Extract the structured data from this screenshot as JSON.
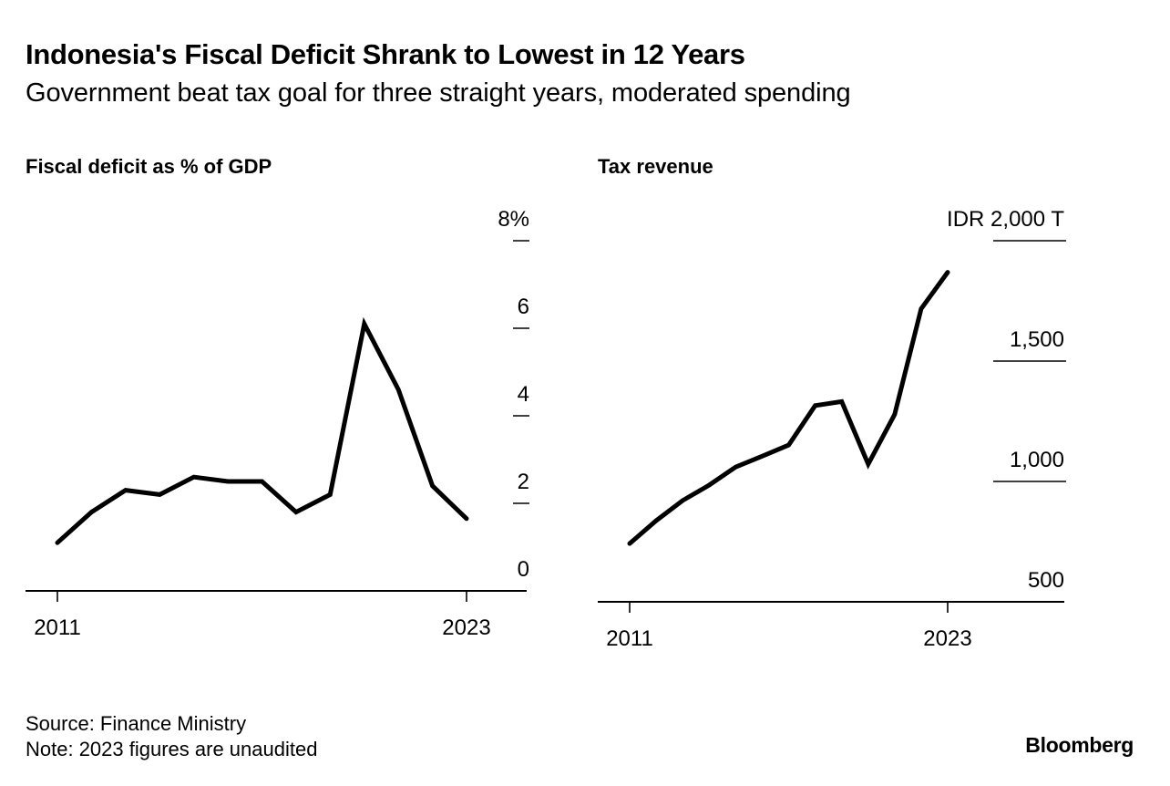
{
  "header": {
    "title": "Indonesia's Fiscal Deficit Shrank to Lowest in 12 Years",
    "subtitle": "Government beat tax goal for three straight years, moderated spending"
  },
  "footer": {
    "source": "Source: Finance Ministry",
    "note": "Note: 2023 figures are unaudited",
    "brand": "Bloomberg"
  },
  "chart_data": [
    {
      "type": "line",
      "title": "Fiscal deficit as % of GDP",
      "xlabel": "",
      "ylabel": "",
      "x": [
        2011,
        2012,
        2013,
        2014,
        2015,
        2016,
        2017,
        2018,
        2019,
        2020,
        2021,
        2022,
        2023
      ],
      "series": [
        {
          "name": "Fiscal deficit (% of GDP)",
          "values": [
            1.1,
            1.8,
            2.3,
            2.2,
            2.6,
            2.5,
            2.5,
            1.8,
            2.2,
            6.1,
            4.6,
            2.4,
            1.65
          ]
        }
      ],
      "ylim": [
        0,
        8
      ],
      "yticks": [
        0,
        2,
        4,
        6,
        8
      ],
      "ytick_labels": [
        "0",
        "2",
        "4",
        "6",
        "8%"
      ],
      "xticks": [
        2011,
        2023
      ],
      "xtick_labels": [
        "2011",
        "2023"
      ],
      "axis_side": "right",
      "grid": false,
      "legend": "none",
      "line_color": "#000000"
    },
    {
      "type": "line",
      "title": "Tax revenue",
      "xlabel": "",
      "ylabel": "",
      "x": [
        2011,
        2012,
        2013,
        2014,
        2015,
        2016,
        2017,
        2018,
        2019,
        2020,
        2021,
        2022,
        2023
      ],
      "series": [
        {
          "name": "Tax revenue (IDR trillion)",
          "values": [
            742,
            837,
            921,
            985,
            1060,
            1105,
            1151,
            1315,
            1332,
            1072,
            1278,
            1717,
            1869
          ]
        }
      ],
      "ylim": [
        500,
        2000
      ],
      "yticks": [
        500,
        1000,
        1500,
        2000
      ],
      "ytick_labels": [
        "500",
        "1,000",
        "1,500",
        "IDR 2,000 T"
      ],
      "xticks": [
        2011,
        2023
      ],
      "xtick_labels": [
        "2011",
        "2023"
      ],
      "axis_side": "right",
      "grid": false,
      "legend": "none",
      "line_color": "#000000"
    }
  ]
}
